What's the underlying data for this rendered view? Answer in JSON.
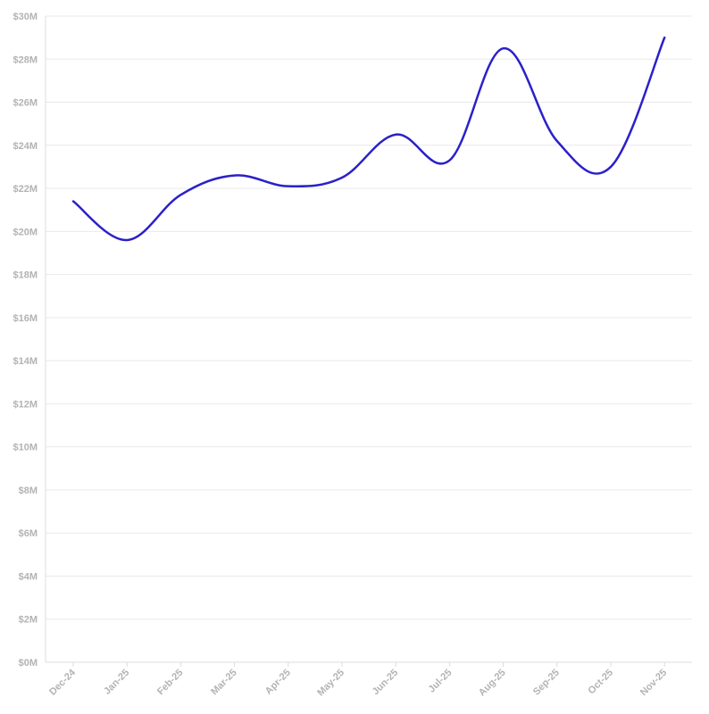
{
  "chart_data": {
    "type": "line",
    "categories": [
      "Dec-24",
      "Jan-25",
      "Feb-25",
      "Mar-25",
      "Apr-25",
      "May-25",
      "Jun-25",
      "Jul-25",
      "Aug-25",
      "Sep-25",
      "Oct-25",
      "Nov-25"
    ],
    "series": [
      {
        "values": [
          21.4,
          19.6,
          21.7,
          22.6,
          22.1,
          22.5,
          24.5,
          23.3,
          28.5,
          24.2,
          23.0,
          29.0
        ],
        "color": "#2b20c9"
      }
    ],
    "y_ticks": [
      "$0M",
      "$2M",
      "$4M",
      "$6M",
      "$8M",
      "$10M",
      "$12M",
      "$14M",
      "$16M",
      "$18M",
      "$20M",
      "$22M",
      "$24M",
      "$26M",
      "$28M",
      "$30M"
    ],
    "ylim": [
      0,
      30
    ],
    "grid": true,
    "title": "",
    "xlabel": "",
    "ylabel": ""
  }
}
